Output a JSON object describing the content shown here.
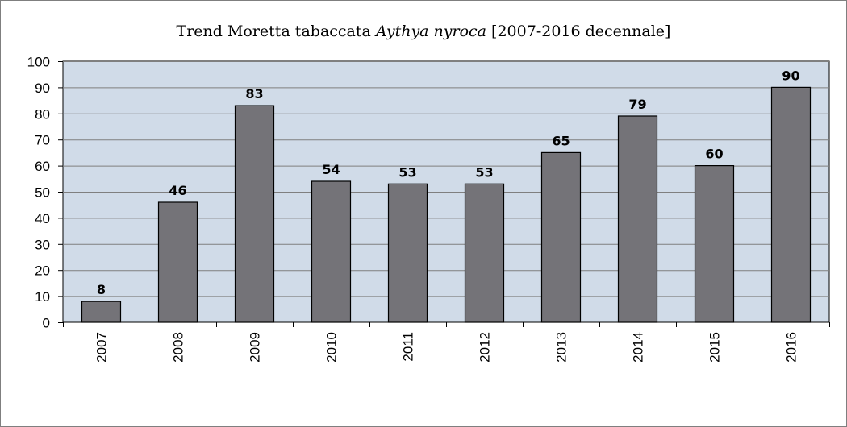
{
  "chart_data": {
    "type": "bar",
    "title": {
      "prefix": "Trend Moretta tabaccata ",
      "species": "Aythya nyroca",
      "suffix": " [2007-2016 decennale]"
    },
    "categories": [
      "2007",
      "2008",
      "2009",
      "2010",
      "2011",
      "2012",
      "2013",
      "2014",
      "2015",
      "2016"
    ],
    "values": [
      8,
      46,
      83,
      54,
      53,
      53,
      65,
      79,
      60,
      90
    ],
    "data_labels": [
      "8",
      "46",
      "83",
      "54",
      "53",
      "53",
      "65",
      "79",
      "60",
      "90"
    ],
    "y_ticks": [
      "0",
      "10",
      "20",
      "30",
      "40",
      "50",
      "60",
      "70",
      "80",
      "90",
      "100"
    ],
    "ylim": [
      0,
      100
    ],
    "grid": true,
    "legend": false,
    "xlabel": "",
    "ylabel": ""
  },
  "colors": {
    "plot_background": "#d0dbe8",
    "bar_fill": "#747378",
    "bar_stroke": "#000000",
    "gridline": "#7f7f7f"
  }
}
